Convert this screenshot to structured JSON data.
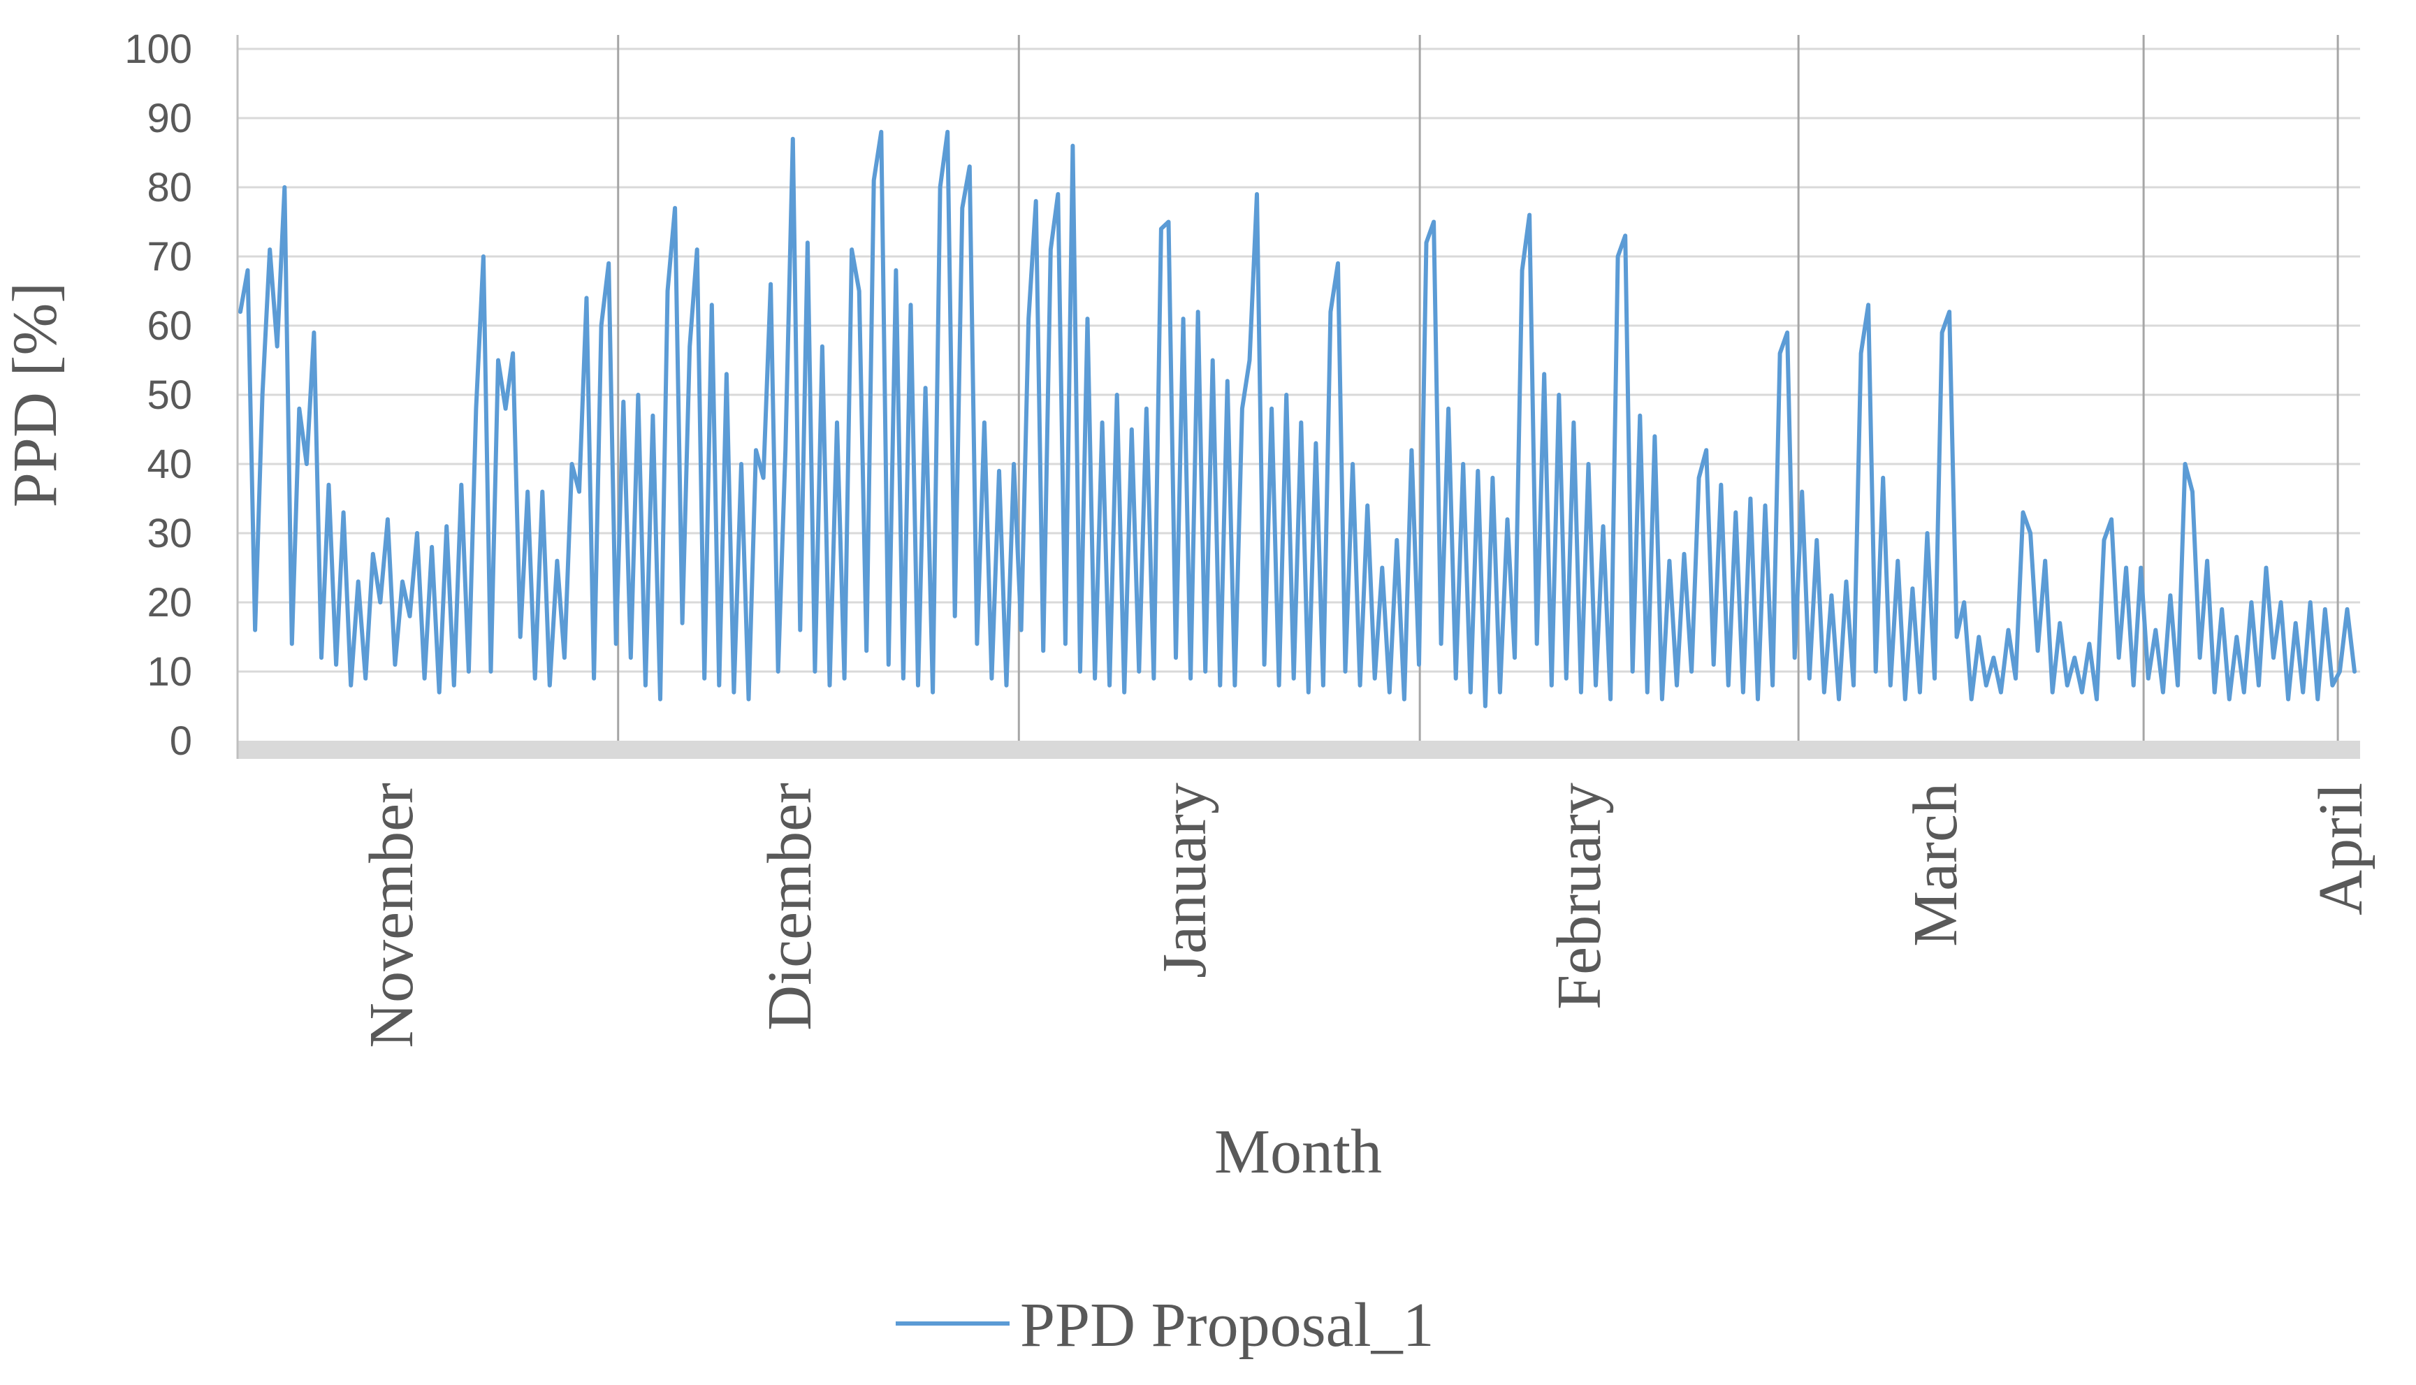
{
  "chart_data": {
    "type": "line",
    "title": "",
    "xlabel": "Month",
    "ylabel": "PPD [%]",
    "ylim": [
      0,
      100
    ],
    "yticks": [
      0,
      10,
      20,
      30,
      40,
      50,
      60,
      70,
      80,
      90,
      100
    ],
    "grid": "horizontal",
    "legend_position": "bottom",
    "x_tick_labels": [
      "November",
      "Dicember",
      "January",
      "February",
      "March",
      "April"
    ],
    "series": [
      {
        "name": "PPD Proposal_1",
        "color": "#5b9bd5",
        "x_unit": "day of record",
        "values": [
          62,
          68,
          16,
          50,
          71,
          57,
          80,
          14,
          48,
          40,
          59,
          12,
          37,
          11,
          33,
          8,
          23,
          9,
          27,
          20,
          32,
          11,
          23,
          18,
          30,
          9,
          28,
          7,
          31,
          8,
          37,
          10,
          48,
          70,
          10,
          55,
          48,
          56,
          15,
          36,
          9,
          36,
          8,
          26,
          12,
          40,
          36,
          64,
          9,
          60,
          69,
          14,
          49,
          12,
          50,
          8,
          47,
          6,
          65,
          77,
          17,
          57,
          71,
          9,
          63,
          8,
          53,
          7,
          40,
          6,
          42,
          38,
          66,
          10,
          42,
          87,
          16,
          72,
          10,
          57,
          8,
          46,
          9,
          71,
          65,
          13,
          81,
          88,
          11,
          68,
          9,
          63,
          8,
          51,
          7,
          80,
          88,
          18,
          77,
          83,
          14,
          46,
          9,
          39,
          8,
          40,
          16,
          61,
          78,
          13,
          71,
          79,
          14,
          86,
          10,
          61,
          9,
          46,
          8,
          50,
          7,
          45,
          10,
          48,
          9,
          74,
          75,
          12,
          61,
          9,
          62,
          10,
          55,
          8,
          52,
          8,
          48,
          55,
          79,
          11,
          48,
          8,
          50,
          9,
          46,
          7,
          43,
          8,
          62,
          69,
          10,
          40,
          8,
          34,
          9,
          25,
          7,
          29,
          6,
          42,
          11,
          72,
          75,
          14,
          48,
          9,
          40,
          7,
          39,
          5,
          38,
          7,
          32,
          12,
          68,
          76,
          14,
          53,
          8,
          50,
          9,
          46,
          7,
          40,
          8,
          31,
          6,
          70,
          73,
          10,
          47,
          7,
          44,
          6,
          26,
          8,
          27,
          10,
          38,
          42,
          11,
          37,
          8,
          33,
          7,
          35,
          6,
          34,
          8,
          56,
          59,
          12,
          36,
          9,
          29,
          7,
          21,
          6,
          23,
          8,
          56,
          63,
          10,
          38,
          8,
          26,
          6,
          22,
          7,
          30,
          9,
          59,
          62,
          15,
          20,
          6,
          15,
          8,
          12,
          7,
          16,
          9,
          33,
          30,
          13,
          26,
          7,
          17,
          8,
          12,
          7,
          14,
          6,
          29,
          32,
          12,
          25,
          8,
          25,
          9,
          16,
          7,
          21,
          8,
          40,
          36,
          12,
          26,
          7,
          19,
          6,
          15,
          7,
          20,
          8,
          25,
          12,
          20,
          6,
          17,
          7,
          20,
          6,
          19,
          8,
          10,
          19,
          10
        ]
      }
    ]
  }
}
